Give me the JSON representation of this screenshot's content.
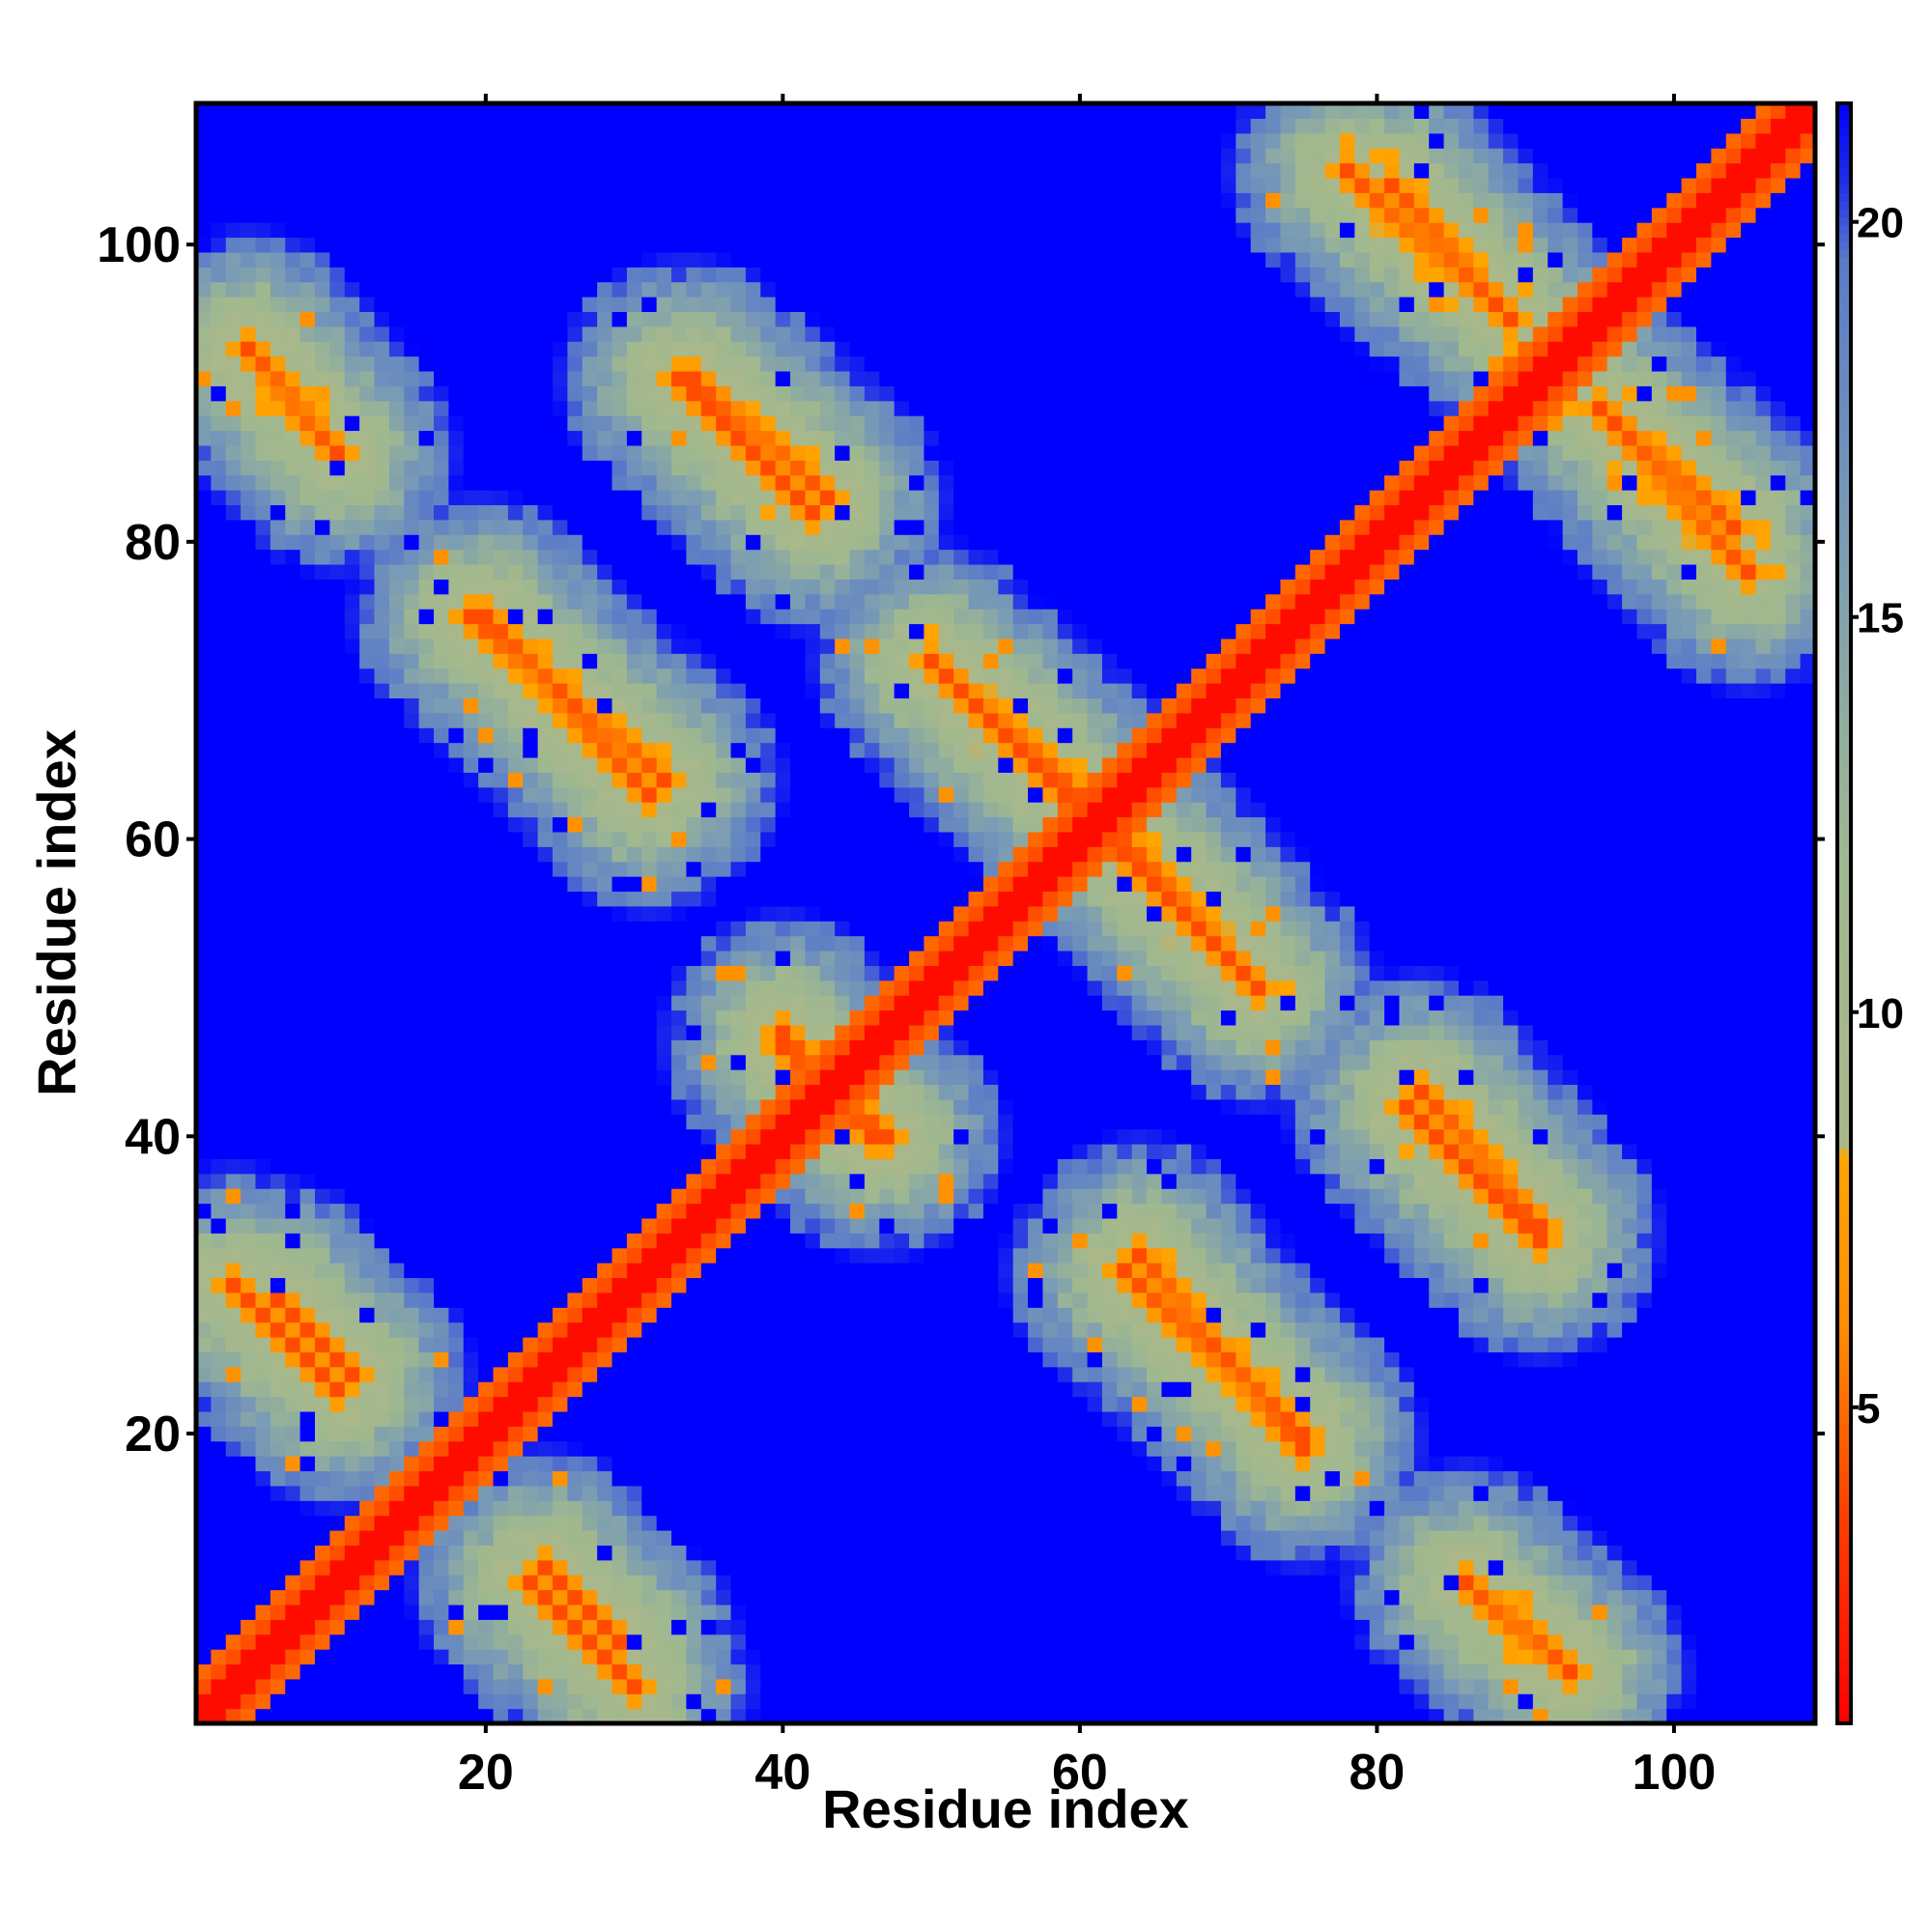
{
  "chart_data": {
    "type": "heatmap",
    "title": "",
    "xlabel": "Residue index",
    "ylabel": "Residue index",
    "residue_count": 109,
    "xlim": [
      1,
      109
    ],
    "ylim": [
      1,
      109
    ],
    "x_ticks": [
      20,
      40,
      60,
      80,
      100
    ],
    "y_ticks": [
      20,
      40,
      60,
      80,
      100
    ],
    "x_tick_labels": [
      "20",
      "40",
      "60",
      "80",
      "100"
    ],
    "y_tick_labels": [
      "20",
      "40",
      "60",
      "80",
      "100"
    ],
    "colorbar": {
      "range": [
        1,
        21.5
      ],
      "ticks": [
        5,
        10,
        15,
        20
      ],
      "tick_labels": [
        "5",
        "10",
        "15",
        "20"
      ],
      "stops": [
        {
          "value": 1,
          "color": "#ff0000"
        },
        {
          "value": 3.5,
          "color": "#ff3b00"
        },
        {
          "value": 6,
          "color": "#ff8c00"
        },
        {
          "value": 8.2,
          "color": "#ffa500"
        },
        {
          "value": 8.3,
          "color": "#aab88a"
        },
        {
          "value": 12,
          "color": "#9fb890"
        },
        {
          "value": 16,
          "color": "#7a9cb4"
        },
        {
          "value": 19.5,
          "color": "#5b7bc8"
        },
        {
          "value": 20.5,
          "color": "#1f2fe8"
        },
        {
          "value": 21.5,
          "color": "#0000ff"
        }
      ]
    },
    "description_of_values": "Pairwise residue distance map (symmetric); red diagonal = near contacts, orange anti-diagonal stripes = beta-strand pairings, blue = far.",
    "strand_pairings": [
      {
        "i_start": 6,
        "i_end": 11,
        "j_start": 29,
        "j_end": 24
      },
      {
        "i_start": 23,
        "i_end": 30,
        "j_start": 10,
        "j_end": 3
      },
      {
        "i_start": 4,
        "i_end": 10,
        "j_start": 93,
        "j_end": 86
      },
      {
        "i_start": 20,
        "i_end": 31,
        "j_start": 75,
        "j_end": 63
      },
      {
        "i_start": 33,
        "i_end": 42,
        "j_start": 91,
        "j_end": 82
      },
      {
        "i_start": 50,
        "i_end": 60,
        "j_start": 72,
        "j_end": 62
      },
      {
        "i_start": 64,
        "i_end": 75,
        "j_start": 32,
        "j_end": 19
      },
      {
        "i_start": 62,
        "i_end": 72,
        "j_start": 61,
        "j_end": 50
      },
      {
        "i_start": 81,
        "i_end": 89,
        "j_start": 104,
        "j_end": 95
      },
      {
        "i_start": 96,
        "i_end": 105,
        "j_start": 88,
        "j_end": 78
      },
      {
        "i_start": 83,
        "i_end": 91,
        "j_start": 43,
        "j_end": 34
      },
      {
        "i_start": 40,
        "i_end": 47,
        "j_start": 46,
        "j_end": 40
      }
    ]
  }
}
